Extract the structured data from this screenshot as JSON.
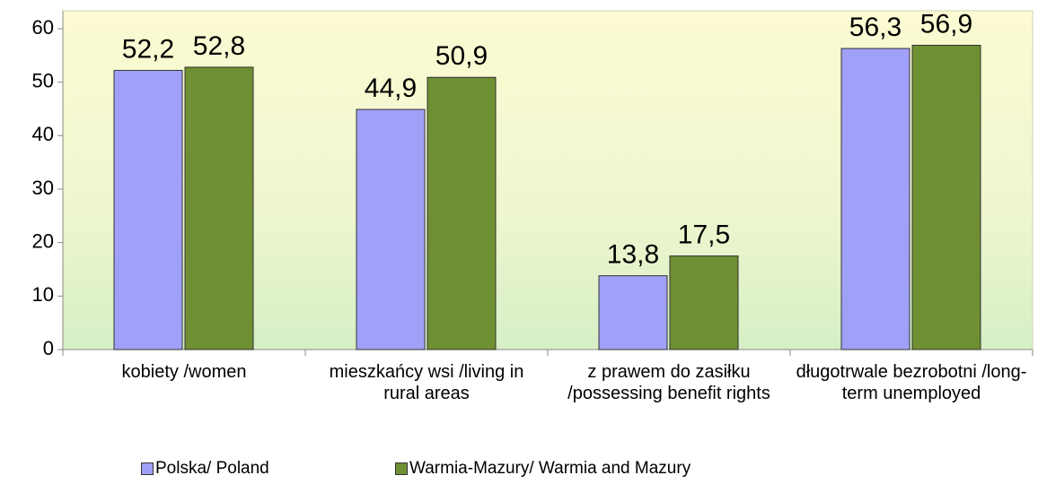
{
  "chart_data": {
    "type": "bar",
    "categories": [
      "kobiety /women",
      "mieszkańcy wsi /living in rural areas",
      "z prawem do zasiłku /possessing benefit rights",
      "długotrwale bezrobotni /long-term unemployed"
    ],
    "series": [
      {
        "name": "Polska/ Poland",
        "color": "#a0a0f8",
        "values": [
          52.2,
          44.9,
          13.8,
          56.3
        ],
        "value_labels": [
          "52,2",
          "44,9",
          "13,8",
          "56,3"
        ]
      },
      {
        "name": "Warmia-Mazury/ Warmia and Mazury",
        "color": "#6f8f33",
        "values": [
          52.8,
          50.9,
          17.5,
          56.9
        ],
        "value_labels": [
          "52,8",
          "50,9",
          "17,5",
          "56,9"
        ]
      }
    ],
    "ylim": [
      0,
      60
    ],
    "yticks": [
      0,
      10,
      20,
      30,
      40,
      50,
      60
    ],
    "legend": "bottom"
  }
}
